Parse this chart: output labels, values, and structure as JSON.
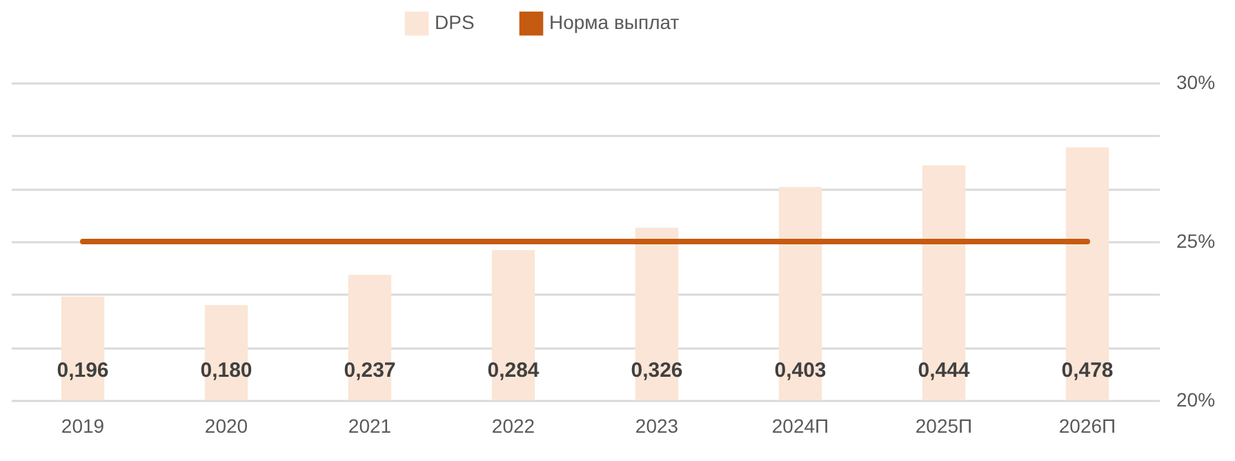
{
  "chart_data": {
    "type": "bar",
    "categories": [
      "2019",
      "2020",
      "2021",
      "2022",
      "2023",
      "2024П",
      "2025П",
      "2026П"
    ],
    "series": [
      {
        "name": "DPS",
        "color": "#fbe5d6",
        "values": [
          0.196,
          0.18,
          0.237,
          0.284,
          0.326,
          0.403,
          0.444,
          0.478
        ],
        "value_labels": [
          "0,196",
          "0,180",
          "0,237",
          "0,284",
          "0,326",
          "0,403",
          "0,444",
          "0,478"
        ]
      },
      {
        "name": "Норма выплат",
        "type": "line",
        "axis": "y2",
        "color": "#c55a11",
        "values": [
          25,
          25,
          25,
          25,
          25,
          25,
          25,
          25
        ]
      }
    ],
    "ylim": [
      0,
      0.6
    ],
    "yticks": [
      {
        "value": 0,
        "label": null
      },
      {
        "value": 0.1,
        "label": null
      },
      {
        "value": 0.2,
        "label": null
      },
      {
        "value": 0.3,
        "label": null
      },
      {
        "value": 0.4,
        "label": null
      },
      {
        "value": 0.5,
        "label": null
      },
      {
        "value": 0.6,
        "label": null
      }
    ],
    "y2lim": [
      20,
      30
    ],
    "y2ticks": [
      {
        "value": 20,
        "label": "20%"
      },
      {
        "value": 25,
        "label": "25%"
      },
      {
        "value": 30,
        "label": "30%"
      }
    ],
    "grid": "y",
    "legend": "top"
  }
}
